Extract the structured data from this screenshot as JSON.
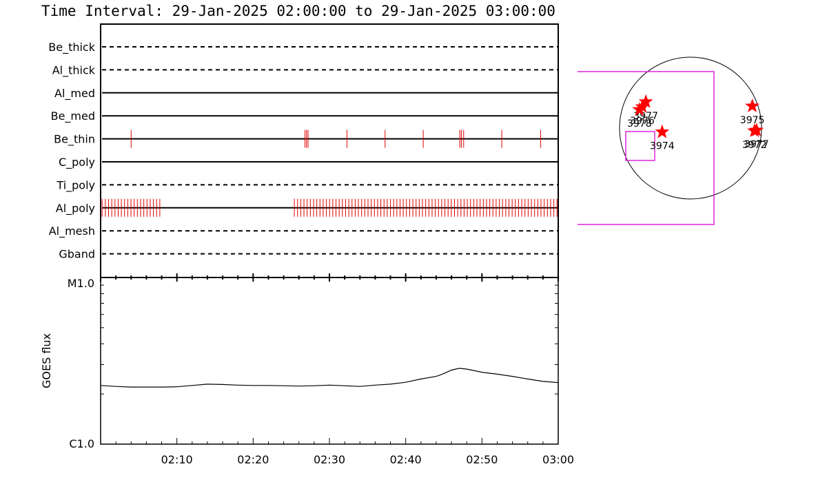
{
  "title": "Time Interval: 29-Jan-2025 02:00:00 to 29-Jan-2025 03:00:00",
  "colors": {
    "axis": "#000000",
    "event_tick": "#dd0000",
    "star": "#ff0000",
    "fov_box": "#dd22dd",
    "sun_limb": "#000000"
  },
  "chart_data": [
    {
      "type": "line",
      "subtype": "channel-timeline",
      "x_range": [
        "02:00",
        "03:00"
      ],
      "x_ticks": [
        "02:10",
        "02:20",
        "02:30",
        "02:40",
        "02:50",
        "03:00"
      ],
      "channels": [
        {
          "name": "Be_thick",
          "style": "dashed",
          "events": []
        },
        {
          "name": "Al_thick",
          "style": "dashed",
          "events": []
        },
        {
          "name": "Al_med",
          "style": "solid",
          "events": []
        },
        {
          "name": "Be_med",
          "style": "solid",
          "events": []
        },
        {
          "name": "Be_thin",
          "style": "solid",
          "events": [
            4.0,
            26.8,
            27.0,
            27.2,
            32.3,
            37.3,
            42.3,
            47.1,
            47.3,
            47.6,
            52.6,
            57.7
          ]
        },
        {
          "name": "C_poly",
          "style": "solid",
          "events": []
        },
        {
          "name": "Ti_poly",
          "style": "dashed",
          "events": []
        },
        {
          "name": "Al_poly",
          "style": "solid",
          "event_ranges": [
            [
              0.2,
              8.0
            ],
            [
              25.4,
              59.9
            ]
          ],
          "event_spacing_min": 0.42
        },
        {
          "name": "Al_mesh",
          "style": "dashed",
          "events": []
        },
        {
          "name": "Gband",
          "style": "dashed",
          "events": []
        }
      ]
    },
    {
      "type": "line",
      "ylabel": "GOES flux",
      "yscale": "log",
      "y_tick_labels": [
        "C1.0",
        "M1.0"
      ],
      "ylim": [
        1e-06,
        1e-05
      ],
      "x_range": [
        "02:00",
        "03:00"
      ],
      "x_ticks": [
        "02:10",
        "02:20",
        "02:30",
        "02:40",
        "02:50",
        "03:00"
      ],
      "series": [
        {
          "x": [
            0,
            2,
            4,
            6,
            8,
            10,
            12,
            14,
            16,
            18,
            20,
            22,
            24,
            26,
            28,
            30,
            32,
            34,
            36,
            38,
            40,
            42,
            44,
            45,
            46,
            47,
            48,
            50,
            52,
            54,
            56,
            58,
            60
          ],
          "y": [
            2.25e-06,
            2.22e-06,
            2.2e-06,
            2.2e-06,
            2.2e-06,
            2.21e-06,
            2.25e-06,
            2.29e-06,
            2.28e-06,
            2.26e-06,
            2.25e-06,
            2.25e-06,
            2.24e-06,
            2.23e-06,
            2.24e-06,
            2.26e-06,
            2.24e-06,
            2.22e-06,
            2.26e-06,
            2.29e-06,
            2.35e-06,
            2.46e-06,
            2.55e-06,
            2.65e-06,
            2.78e-06,
            2.85e-06,
            2.82e-06,
            2.7e-06,
            2.63e-06,
            2.55e-06,
            2.46e-06,
            2.38e-06,
            2.34e-06
          ]
        }
      ]
    },
    {
      "type": "scatter",
      "subtype": "solar-disk-map",
      "points": [
        {
          "label": "3974",
          "x": -400,
          "y": -55
        },
        {
          "label": "3975",
          "x": 870,
          "y": 310
        },
        {
          "label": "3976",
          "x": -680,
          "y": 300
        },
        {
          "label": "3977",
          "x": -630,
          "y": 370
        },
        {
          "label": "3978",
          "x": -720,
          "y": 260
        },
        {
          "label": "3972",
          "x": 900,
          "y": -40
        },
        {
          "label": "3977",
          "x": 930,
          "y": -30
        }
      ]
    }
  ]
}
